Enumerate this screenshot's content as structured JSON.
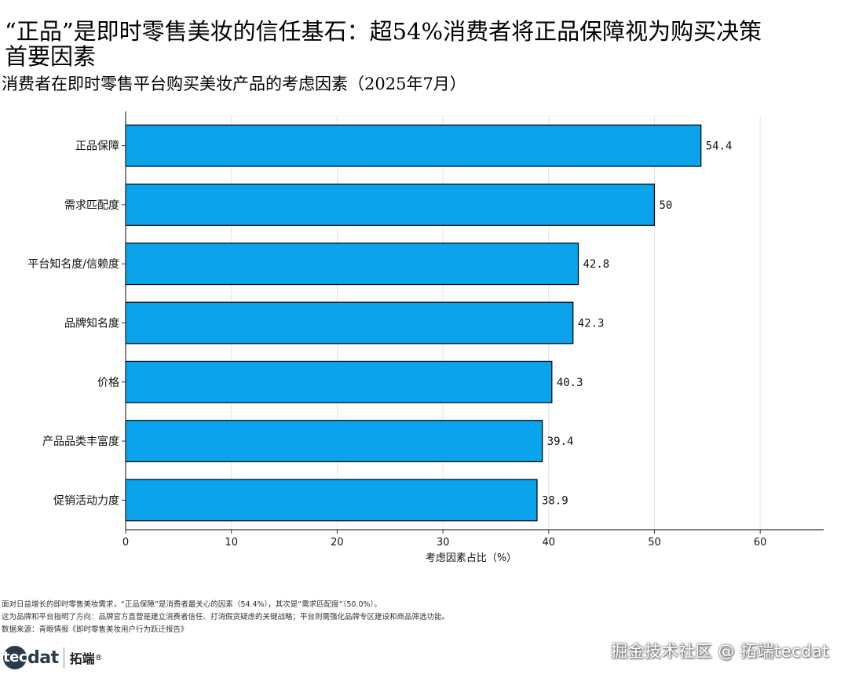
{
  "title_line1": "“正品”是即时零售美妆的信任基石：超54%消费者将正品保障视为购买决策",
  "title_line2": "首要因素",
  "subtitle": "消费者在即时零售平台购买美妆产品的考虑因素（2025年7月）",
  "chart_data": {
    "type": "bar",
    "orientation": "horizontal",
    "categories": [
      "正品保障",
      "需求匹配度",
      "平台知名度/信赖度",
      "品牌知名度",
      "价格",
      "产品品类丰富度",
      "促销活动力度"
    ],
    "values": [
      54.4,
      50,
      42.8,
      42.3,
      40.3,
      39.4,
      38.9
    ],
    "value_labels": [
      "54.4",
      "50",
      "42.8",
      "42.3",
      "40.3",
      "39.4",
      "38.9"
    ],
    "xlabel": "考虑因素占比（%）",
    "xlim": [
      0,
      66
    ],
    "xticks": [
      0,
      10,
      20,
      30,
      40,
      50,
      60
    ],
    "grid": true,
    "bar_color": "#0aa3ec",
    "edge_color": "#000000"
  },
  "notes": [
    "面对日益增长的即时零售美妆需求，“正品保障”是消费者最关心的因素（54.4%），其次是“需求匹配度”（50.0%）。",
    "这为品牌和平台指明了方向：品牌官方直营是建立消费者信任、打消假货疑虑的关键战略；平台则需强化品牌专区建设和商品筛选功能。",
    "数据来源：青眼情报《即时零售美妆用户行为跃迁报告》"
  ],
  "logo": {
    "mark_circle": "tec",
    "mark_text": "dat",
    "cn": "拓端",
    "reg": "®"
  },
  "watermark": "掘金技术社区 @ 拓端tecdat"
}
